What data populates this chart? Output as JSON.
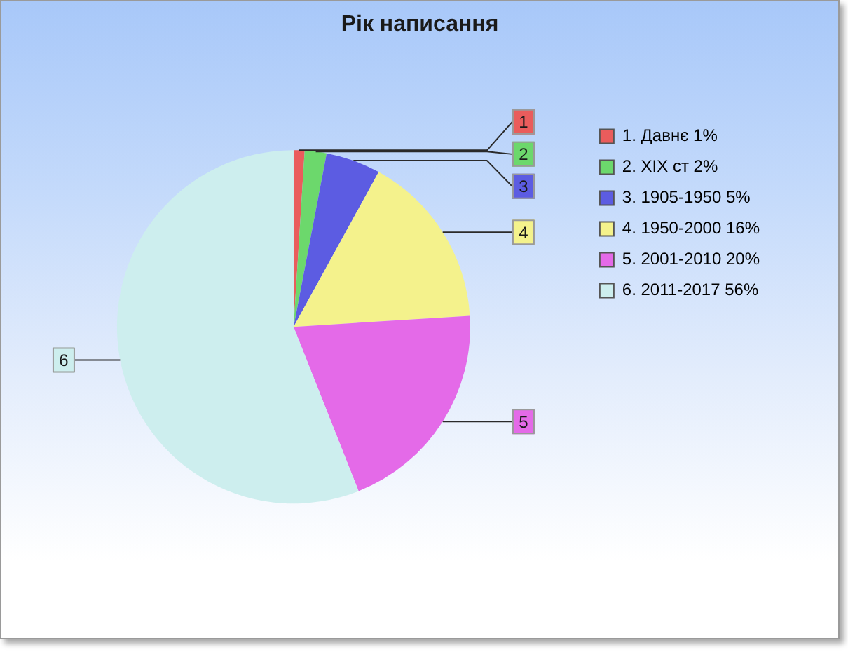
{
  "chart_data": {
    "type": "pie",
    "title": "Рік написання",
    "categories": [
      "1. Давнє 1%",
      "2. XIX ст 2%",
      "3. 1905-1950 5%",
      "4. 1950-2000 16%",
      "5. 2001-2010 20%",
      "6. 2011-2017 56%"
    ],
    "values": [
      1,
      2,
      5,
      16,
      20,
      56
    ],
    "colors": [
      "#ea5c5c",
      "#6cd86c",
      "#5c5ce2",
      "#f4f28c",
      "#e46ae8",
      "#cdeeee"
    ],
    "annotations": [
      "1",
      "2",
      "3",
      "4",
      "5",
      "6"
    ],
    "legend": "right"
  }
}
